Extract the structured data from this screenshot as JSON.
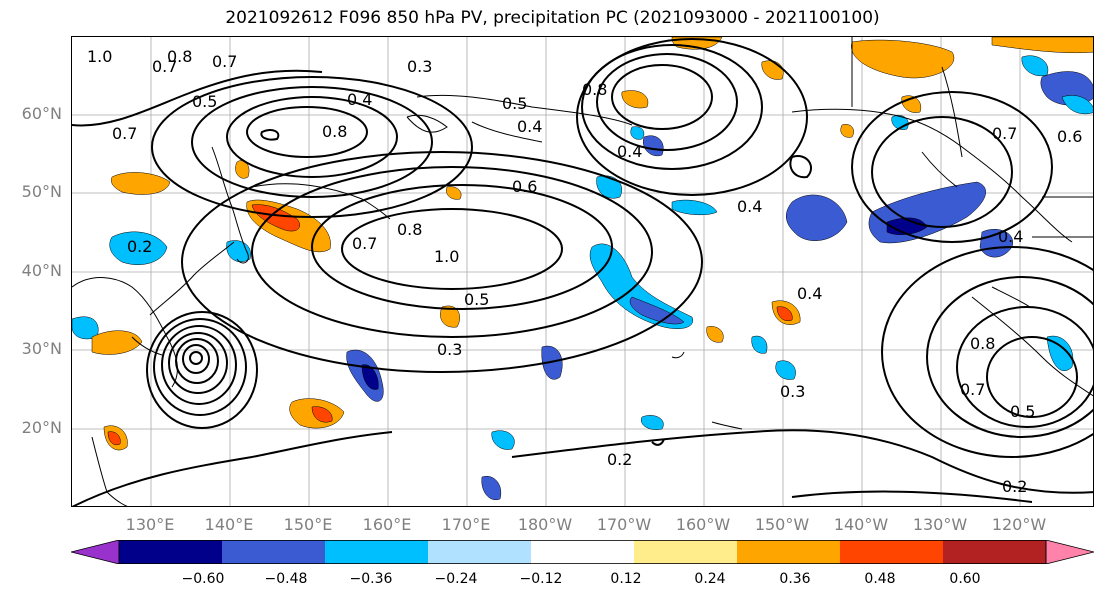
{
  "title": "2021092612 F096 850 hPa PV, precipitation PC (2021093000 - 2021100100)",
  "lat_labels": [
    "60°N",
    "50°N",
    "40°N",
    "30°N",
    "20°N"
  ],
  "lon_labels": [
    "130°E",
    "140°E",
    "150°E",
    "160°E",
    "170°E",
    "180°W",
    "170°W",
    "160°W",
    "150°W",
    "140°W",
    "130°W",
    "120°W"
  ],
  "contour_labels": [
    "1.0",
    "0.8",
    "0.7",
    "0.5",
    "0.3",
    "0.4",
    "0.8",
    "0.7",
    "0.5",
    "0.4",
    "0.6",
    "0.8",
    "0.7",
    "0.8",
    "1.0",
    "0.5",
    "0.3",
    "0.4",
    "0.2",
    "0.3",
    "0.4",
    "0.8",
    "0.7",
    "0.5",
    "0.2",
    "0.7",
    "0.6",
    "0.4",
    "0.4",
    "0.7",
    "0.2"
  ],
  "colorbar": {
    "ticks": [
      "−0.60",
      "−0.48",
      "−0.36",
      "−0.24",
      "−0.12",
      "0.12",
      "0.24",
      "0.36",
      "0.48",
      "0.60"
    ],
    "colors": [
      "#9932cc",
      "#00008b",
      "#3a5bd1",
      "#00bfff",
      "#b0e2ff",
      "#ffffff",
      "#ffec8b",
      "#ffa500",
      "#ff4500",
      "#b22222",
      "#ff82ab"
    ]
  }
}
